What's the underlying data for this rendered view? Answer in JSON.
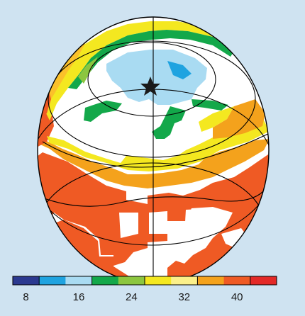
{
  "figure": {
    "type": "orthographic-globe-map",
    "background_color": "#cfe3f1",
    "ocean_color": "#ffffff",
    "outline_color": "#000000",
    "marker_icon": "star-icon",
    "region_colors": {
      "light_blue": "#a9dbf2",
      "blue": "#1fa3e0",
      "green": "#13a84a",
      "light_green": "#8cc63f",
      "yellow": "#f4e820",
      "light_orange": "#fbc12a",
      "orange": "#f4a21c",
      "red_orange": "#ef5a24",
      "red": "#e32927"
    }
  },
  "colorbar": {
    "tick_labels": [
      "8",
      "16",
      "24",
      "32",
      "40"
    ],
    "bins": [
      {
        "color": "#2b3990"
      },
      {
        "color": "#1fa3e0"
      },
      {
        "color": "#a9dbf2"
      },
      {
        "color": "#13a84a"
      },
      {
        "color": "#8cc63f"
      },
      {
        "color": "#f4e820"
      },
      {
        "color": "#fbf08a"
      },
      {
        "color": "#f4a21c"
      },
      {
        "color": "#ef5a24"
      },
      {
        "color": "#e32927"
      }
    ]
  }
}
